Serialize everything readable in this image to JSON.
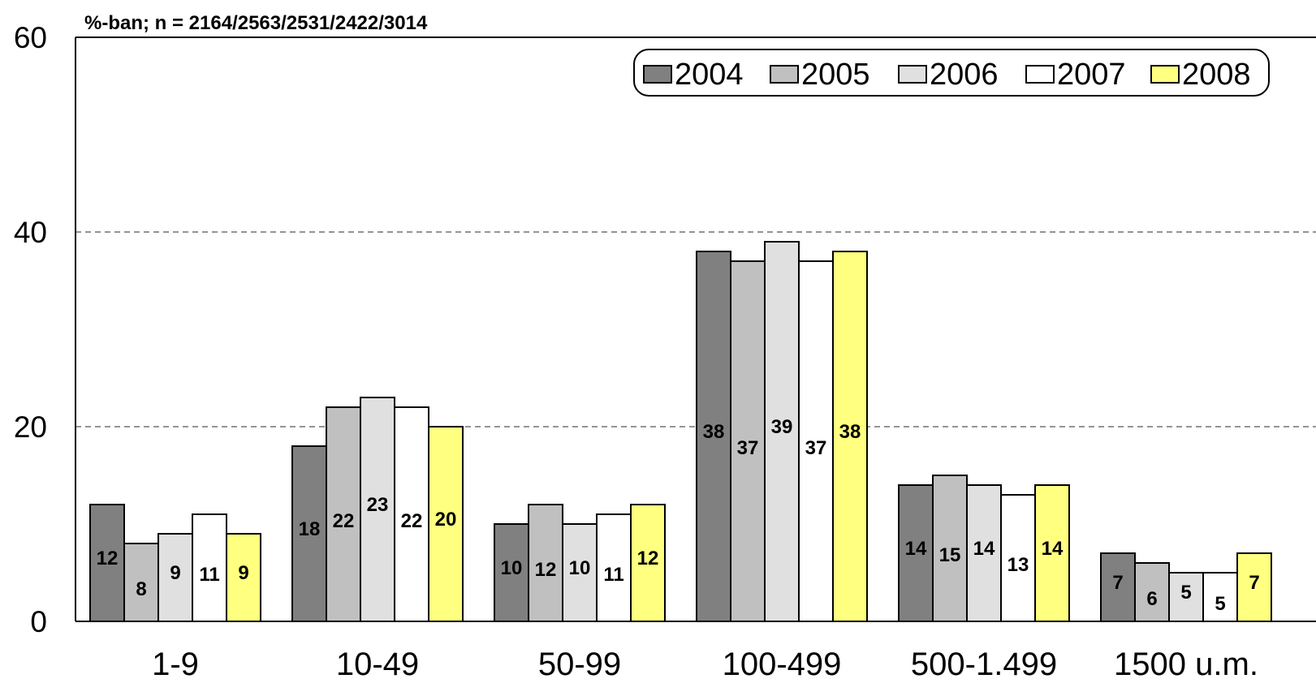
{
  "chart_data": {
    "type": "bar",
    "subtitle": "%-ban; n = 2164/2563/2531/2422/3014",
    "categories": [
      "1-9",
      "10-49",
      "50-99",
      "100-499",
      "500-1.499",
      "1500 u.m."
    ],
    "series": [
      {
        "name": "2004",
        "color": "#808080",
        "values": [
          12,
          18,
          10,
          38,
          14,
          7
        ]
      },
      {
        "name": "2005",
        "color": "#c0c0c0",
        "values": [
          8,
          22,
          12,
          37,
          15,
          6
        ]
      },
      {
        "name": "2006",
        "color": "#e0e0e0",
        "values": [
          9,
          23,
          10,
          39,
          14,
          5
        ]
      },
      {
        "name": "2007",
        "color": "#ffffff",
        "values": [
          11,
          22,
          11,
          37,
          13,
          5
        ]
      },
      {
        "name": "2008",
        "color": "#ffff80",
        "values": [
          9,
          20,
          12,
          38,
          14,
          7
        ]
      }
    ],
    "ylim": [
      0,
      60
    ],
    "yticks": [
      0,
      20,
      40,
      60
    ],
    "grid": "dashed horizontal",
    "legend_position": "top-right",
    "xlabel": "",
    "ylabel": ""
  }
}
